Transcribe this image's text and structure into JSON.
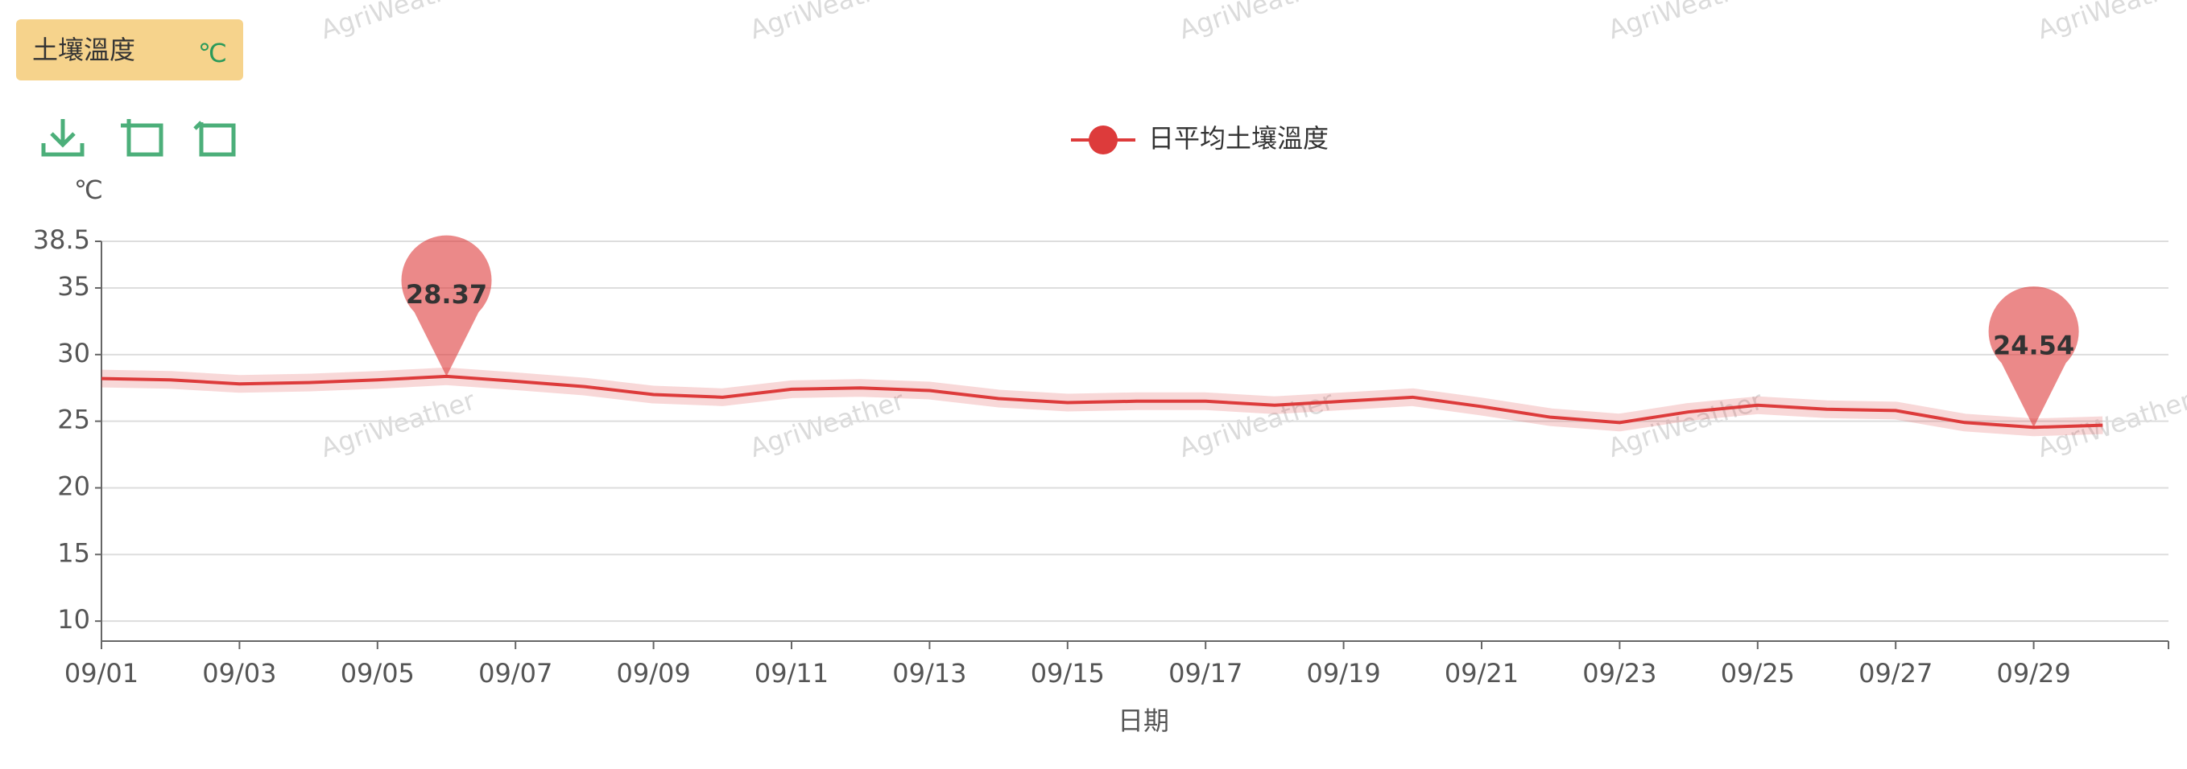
{
  "chart_data": {
    "type": "line",
    "badge": "土壤溫度",
    "badge_unit": "℃",
    "y_axis_label": "℃",
    "x_axis_label": "日期",
    "watermark": "AgriWeather",
    "categories": [
      "09/01",
      null,
      "09/03",
      null,
      "09/05",
      null,
      "09/07",
      null,
      "09/09",
      null,
      "09/11",
      null,
      "09/13",
      null,
      "09/15",
      null,
      "09/17",
      null,
      "09/19",
      null,
      "09/21",
      null,
      "09/23",
      null,
      "09/25",
      null,
      "09/27",
      null,
      "09/29",
      null
    ],
    "series": [
      {
        "name": "日平均土壤溫度",
        "color": "#dd3b3b",
        "values": [
          28.2,
          28.1,
          27.8,
          27.9,
          28.1,
          28.37,
          28.0,
          27.6,
          27.0,
          26.8,
          27.4,
          27.5,
          27.3,
          26.7,
          26.4,
          26.5,
          26.5,
          26.2,
          26.5,
          26.8,
          26.1,
          25.3,
          24.9,
          25.7,
          26.2,
          25.9,
          25.8,
          24.9,
          24.54,
          24.7
        ]
      }
    ],
    "ylim": [
      8.5,
      38.5
    ],
    "yticks": [
      10,
      15,
      20,
      25,
      30,
      35,
      38.5
    ],
    "grid": true
  }
}
